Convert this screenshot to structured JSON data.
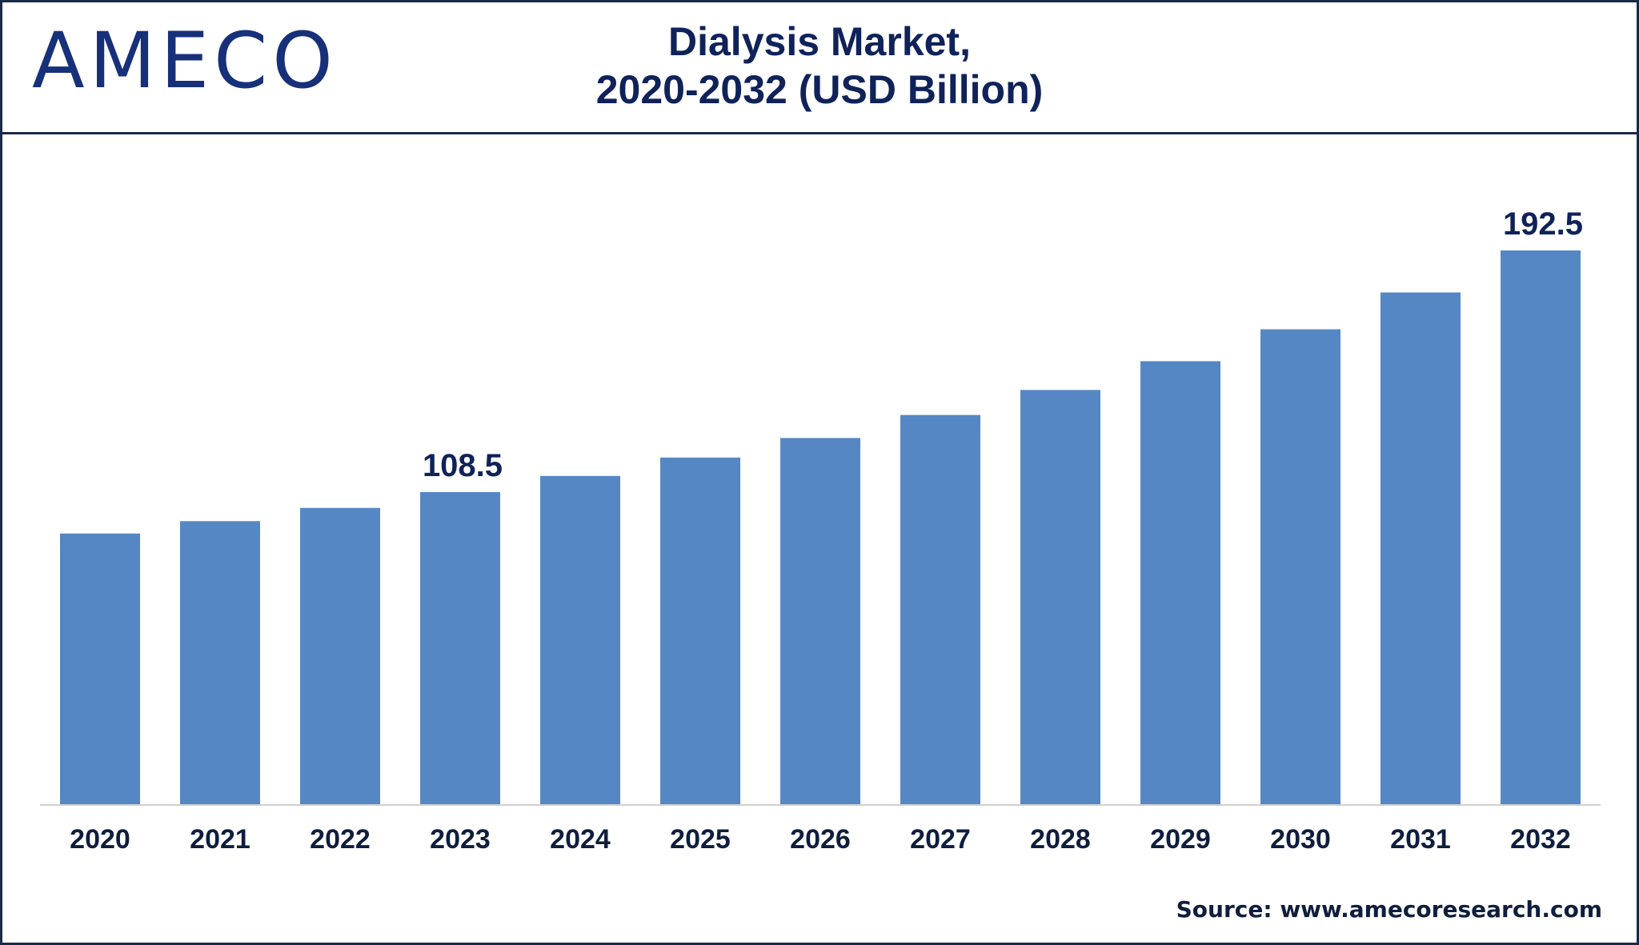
{
  "brand": {
    "logo_text": "AMECO",
    "logo_color": "#17307a"
  },
  "header": {
    "title_line1": "Dialysis Market,",
    "title_line2": "2020-2032 (USD Billion)"
  },
  "footer": {
    "source": "Source: www.amecoresearch.com"
  },
  "colors": {
    "bar": "#5587c5",
    "title": "#0f2259",
    "frame": "#1b2a49"
  },
  "chart_data": {
    "type": "bar",
    "title": "Dialysis Market, 2020-2032 (USD Billion)",
    "xlabel": "",
    "ylabel": "",
    "categories": [
      "2020",
      "2021",
      "2022",
      "2023",
      "2024",
      "2025",
      "2026",
      "2027",
      "2028",
      "2029",
      "2030",
      "2031",
      "2032"
    ],
    "values": [
      94.1,
      98.4,
      103.0,
      108.5,
      114.1,
      120.5,
      127.3,
      135.3,
      144.0,
      154.0,
      165.1,
      177.9,
      192.5
    ],
    "data_labels": {
      "3": "108.5",
      "12": "192.5"
    },
    "ylim": [
      0,
      192.5
    ],
    "grid": false,
    "legend": "none"
  }
}
